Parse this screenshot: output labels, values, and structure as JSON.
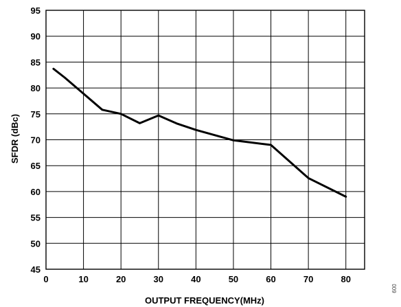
{
  "chart_data": {
    "type": "line",
    "title": "",
    "xlabel": "OUTPUT FREQUENCY(MHz)",
    "ylabel": "SFDR (dBc)",
    "xlim": [
      0,
      85
    ],
    "ylim": [
      45,
      95
    ],
    "x_ticks": [
      0,
      10,
      20,
      30,
      40,
      50,
      60,
      70,
      80
    ],
    "y_ticks": [
      45,
      50,
      55,
      60,
      65,
      70,
      75,
      80,
      85,
      90,
      95
    ],
    "grid": true,
    "legend": "none",
    "series": [
      {
        "color": "#000000",
        "x": [
          2,
          5,
          10,
          15,
          20,
          25,
          30,
          35,
          40,
          50,
          60,
          70,
          80
        ],
        "y": [
          83.7,
          82.0,
          78.9,
          75.8,
          75.0,
          73.2,
          74.7,
          73.1,
          71.9,
          69.9,
          69.0,
          62.6,
          59.0
        ]
      }
    ]
  },
  "figure_code": "009"
}
